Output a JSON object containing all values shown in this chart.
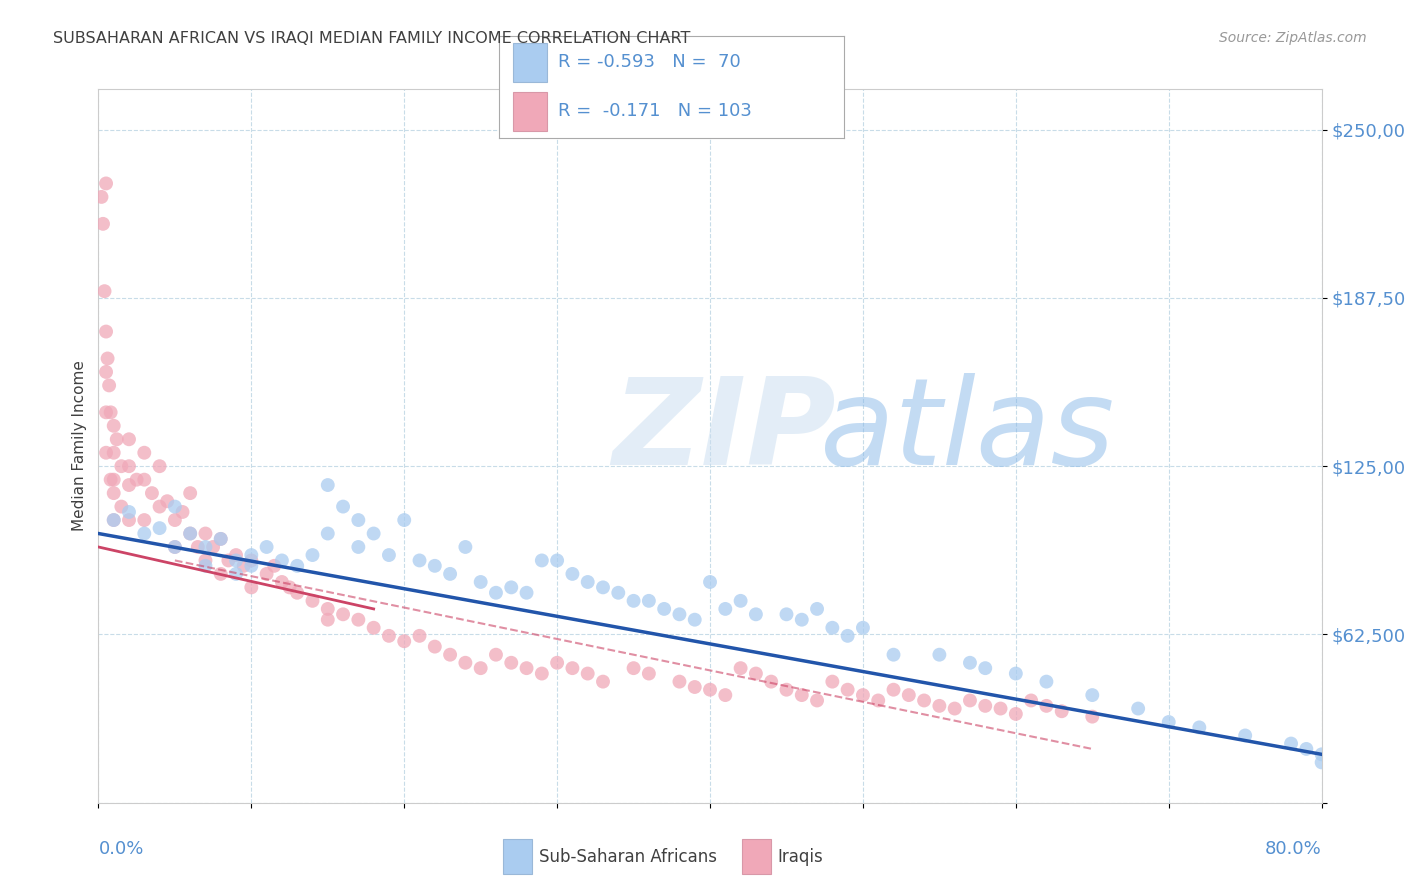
{
  "title": "SUBSAHARAN AFRICAN VS IRAQI MEDIAN FAMILY INCOME CORRELATION CHART",
  "source": "Source: ZipAtlas.com",
  "ylabel": "Median Family Income",
  "ytick_vals": [
    0,
    62500,
    125000,
    187500,
    250000
  ],
  "ytick_labels": [
    "",
    "$62,500",
    "$125,000",
    "$187,500",
    "$250,000"
  ],
  "xlim": [
    0,
    80
  ],
  "ylim": [
    0,
    265000
  ],
  "blue_R": "-0.593",
  "blue_N": "70",
  "pink_R": "-0.171",
  "pink_N": "103",
  "legend_label_blue": "Sub-Saharan Africans",
  "legend_label_pink": "Iraqis",
  "watermark_zip": "ZIP",
  "watermark_atlas": "atlas",
  "blue_dot_color": "#aaccf0",
  "pink_dot_color": "#f0a8b8",
  "blue_line_color": "#2255aa",
  "pink_line_color": "#cc4466",
  "grid_color": "#c8dce8",
  "title_color": "#404040",
  "axis_label_color": "#5590d0",
  "source_color": "#999999",
  "bg_color": "#ffffff",
  "blue_x": [
    1,
    2,
    3,
    4,
    5,
    5,
    6,
    7,
    7,
    8,
    9,
    9,
    10,
    10,
    11,
    12,
    13,
    14,
    15,
    15,
    16,
    17,
    17,
    18,
    19,
    20,
    21,
    22,
    23,
    24,
    25,
    26,
    27,
    28,
    29,
    30,
    31,
    32,
    33,
    34,
    35,
    36,
    37,
    38,
    39,
    40,
    41,
    42,
    43,
    45,
    46,
    47,
    48,
    49,
    50,
    52,
    55,
    57,
    58,
    60,
    62,
    65,
    68,
    70,
    72,
    75,
    78,
    79,
    80,
    80
  ],
  "blue_y": [
    105000,
    108000,
    100000,
    102000,
    95000,
    110000,
    100000,
    95000,
    88000,
    98000,
    90000,
    85000,
    92000,
    88000,
    95000,
    90000,
    88000,
    92000,
    118000,
    100000,
    110000,
    105000,
    95000,
    100000,
    92000,
    105000,
    90000,
    88000,
    85000,
    95000,
    82000,
    78000,
    80000,
    78000,
    90000,
    90000,
    85000,
    82000,
    80000,
    78000,
    75000,
    75000,
    72000,
    70000,
    68000,
    82000,
    72000,
    75000,
    70000,
    70000,
    68000,
    72000,
    65000,
    62000,
    65000,
    55000,
    55000,
    52000,
    50000,
    48000,
    45000,
    40000,
    35000,
    30000,
    28000,
    25000,
    22000,
    20000,
    18000,
    15000
  ],
  "pink_x": [
    0.2,
    0.3,
    0.4,
    0.5,
    0.5,
    0.5,
    0.5,
    0.5,
    0.6,
    0.7,
    0.8,
    0.8,
    1.0,
    1.0,
    1.0,
    1.0,
    1.0,
    1.2,
    1.5,
    1.5,
    2.0,
    2.0,
    2.0,
    2.0,
    2.5,
    3.0,
    3.0,
    3.0,
    3.5,
    4.0,
    4.0,
    4.5,
    5.0,
    5.0,
    5.5,
    6.0,
    6.0,
    6.5,
    7.0,
    7.0,
    7.5,
    8.0,
    8.0,
    8.5,
    9.0,
    9.5,
    10.0,
    10.0,
    11.0,
    11.5,
    12.0,
    12.5,
    13.0,
    14.0,
    15.0,
    15.0,
    16.0,
    17.0,
    18.0,
    19.0,
    20.0,
    21.0,
    22.0,
    23.0,
    24.0,
    25.0,
    26.0,
    27.0,
    28.0,
    29.0,
    30.0,
    31.0,
    32.0,
    33.0,
    35.0,
    36.0,
    38.0,
    39.0,
    40.0,
    41.0,
    42.0,
    43.0,
    44.0,
    45.0,
    46.0,
    47.0,
    48.0,
    49.0,
    50.0,
    51.0,
    52.0,
    53.0,
    54.0,
    55.0,
    56.0,
    57.0,
    58.0,
    59.0,
    60.0,
    61.0,
    62.0,
    63.0,
    65.0
  ],
  "pink_y": [
    225000,
    215000,
    190000,
    230000,
    175000,
    160000,
    145000,
    130000,
    165000,
    155000,
    145000,
    120000,
    140000,
    130000,
    120000,
    115000,
    105000,
    135000,
    125000,
    110000,
    135000,
    125000,
    118000,
    105000,
    120000,
    130000,
    120000,
    105000,
    115000,
    125000,
    110000,
    112000,
    105000,
    95000,
    108000,
    115000,
    100000,
    95000,
    100000,
    90000,
    95000,
    98000,
    85000,
    90000,
    92000,
    88000,
    90000,
    80000,
    85000,
    88000,
    82000,
    80000,
    78000,
    75000,
    72000,
    68000,
    70000,
    68000,
    65000,
    62000,
    60000,
    62000,
    58000,
    55000,
    52000,
    50000,
    55000,
    52000,
    50000,
    48000,
    52000,
    50000,
    48000,
    45000,
    50000,
    48000,
    45000,
    43000,
    42000,
    40000,
    50000,
    48000,
    45000,
    42000,
    40000,
    38000,
    45000,
    42000,
    40000,
    38000,
    42000,
    40000,
    38000,
    36000,
    35000,
    38000,
    36000,
    35000,
    33000,
    38000,
    36000,
    34000,
    32000
  ]
}
